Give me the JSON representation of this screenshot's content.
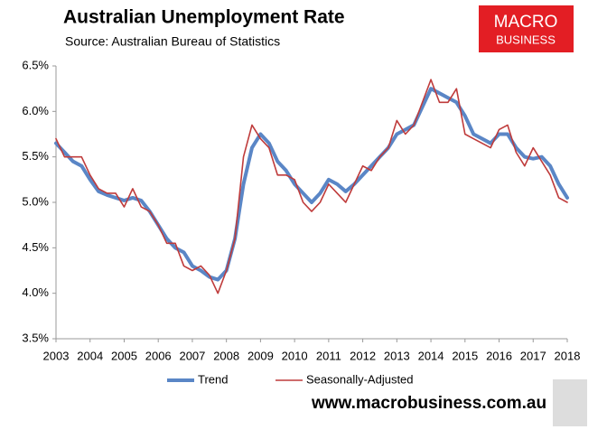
{
  "chart_data": {
    "type": "line",
    "title": "Australian Unemployment Rate",
    "subtitle": "Source: Australian Bureau of Statistics",
    "x": [
      2003,
      2003.25,
      2003.5,
      2003.75,
      2004,
      2004.25,
      2004.5,
      2004.75,
      2005,
      2005.25,
      2005.5,
      2005.75,
      2006,
      2006.25,
      2006.5,
      2006.75,
      2007,
      2007.25,
      2007.5,
      2007.75,
      2008,
      2008.25,
      2008.5,
      2008.75,
      2009,
      2009.25,
      2009.5,
      2009.75,
      2010,
      2010.25,
      2010.5,
      2010.75,
      2011,
      2011.25,
      2011.5,
      2011.75,
      2012,
      2012.25,
      2012.5,
      2012.75,
      2013,
      2013.25,
      2013.5,
      2013.75,
      2014,
      2014.25,
      2014.5,
      2014.75,
      2015,
      2015.25,
      2015.5,
      2015.75,
      2016,
      2016.25,
      2016.5,
      2016.75,
      2017,
      2017.25,
      2017.5,
      2017.75,
      2018
    ],
    "series": [
      {
        "name": "Trend",
        "color": "#5a86c6",
        "width": 4,
        "values": [
          5.65,
          5.55,
          5.45,
          5.4,
          5.25,
          5.12,
          5.08,
          5.05,
          5.02,
          5.05,
          5.02,
          4.9,
          4.75,
          4.6,
          4.5,
          4.45,
          4.3,
          4.25,
          4.18,
          4.15,
          4.25,
          4.6,
          5.2,
          5.6,
          5.75,
          5.65,
          5.45,
          5.35,
          5.2,
          5.1,
          5.0,
          5.1,
          5.25,
          5.2,
          5.12,
          5.2,
          5.3,
          5.4,
          5.5,
          5.6,
          5.75,
          5.8,
          5.85,
          6.05,
          6.25,
          6.2,
          6.15,
          6.1,
          5.95,
          5.75,
          5.7,
          5.65,
          5.75,
          5.75,
          5.6,
          5.5,
          5.48,
          5.5,
          5.4,
          5.2,
          5.05
        ]
      },
      {
        "name": "Seasonally-Adjusted",
        "color": "#bf3b3b",
        "width": 1.6,
        "values": [
          5.7,
          5.5,
          5.5,
          5.5,
          5.3,
          5.15,
          5.1,
          5.1,
          4.95,
          5.15,
          4.95,
          4.9,
          4.75,
          4.55,
          4.55,
          4.3,
          4.25,
          4.3,
          4.2,
          4.0,
          4.25,
          4.6,
          5.5,
          5.85,
          5.7,
          5.6,
          5.3,
          5.3,
          5.25,
          5.0,
          4.9,
          5.0,
          5.2,
          5.1,
          5.0,
          5.2,
          5.4,
          5.35,
          5.5,
          5.6,
          5.9,
          5.75,
          5.85,
          6.1,
          6.35,
          6.1,
          6.1,
          6.25,
          5.75,
          5.7,
          5.65,
          5.6,
          5.8,
          5.85,
          5.55,
          5.4,
          5.6,
          5.45,
          5.3,
          5.05,
          5.0
        ]
      }
    ],
    "xlim": [
      2003,
      2018
    ],
    "xticks": [
      2003,
      2004,
      2005,
      2006,
      2007,
      2008,
      2009,
      2010,
      2011,
      2012,
      2013,
      2014,
      2015,
      2016,
      2017,
      2018
    ],
    "ylim": [
      3.5,
      6.5
    ],
    "yticks": [
      {
        "value": 3.5,
        "label": "3.5%"
      },
      {
        "value": 4.0,
        "label": "4.0%"
      },
      {
        "value": 4.5,
        "label": "4.5%"
      },
      {
        "value": 5.0,
        "label": "5.0%"
      },
      {
        "value": 5.5,
        "label": "5.5%"
      },
      {
        "value": 6.0,
        "label": "6.0%"
      },
      {
        "value": 6.5,
        "label": "6.5%"
      }
    ],
    "grid": false,
    "legend": "bottom"
  },
  "logo": {
    "line1": "MACRO",
    "line2": "BUSINESS"
  },
  "website": "www.macrobusiness.com.au"
}
